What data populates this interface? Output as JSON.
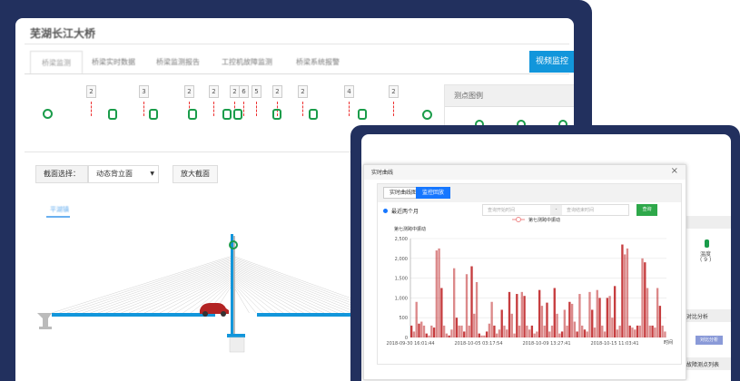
{
  "app": {
    "title": "芜湖长江大桥",
    "tabs": [
      "桥梁监测",
      "桥梁实时数据",
      "桥梁监测报告",
      "工控机故障监测",
      "桥梁系统报警"
    ],
    "video_button": "视频监控"
  },
  "sensors": {
    "counts": [
      "2",
      "3",
      "2",
      "2",
      "2",
      "6",
      "5",
      "2",
      "2",
      "4",
      "2"
    ]
  },
  "legend_panel": {
    "title": "测点图例"
  },
  "section": {
    "label": "截面选择：",
    "selected": "动态背立面",
    "zoom_button": "放大截面",
    "direction": "平湖镇"
  },
  "right_panel": {
    "temp_label": "温度",
    "temp_count": "( 9 )",
    "compare_title": "对比分析",
    "compare_button": "对比分析",
    "list_title": "故障测点列表"
  },
  "modal": {
    "title": "实时曲线",
    "tabs": [
      "实时曲线图",
      "监控回放"
    ],
    "radio": "最近两个月",
    "start_placeholder": "查询开始时间",
    "end_placeholder": "查询结束时间",
    "separator": "-",
    "query_button": "查询"
  },
  "colors": {
    "frame": "#22305e",
    "accent": "#1296db",
    "series": "#c0282a",
    "ok": "#1a9c4a"
  },
  "chart_data": {
    "type": "bar",
    "title": "",
    "legend": [
      "第七测跨中振动"
    ],
    "ylabel": "第七测跨中振动",
    "xlabel": "时间",
    "ylim": [
      0,
      2500
    ],
    "yticks": [
      "0",
      "500",
      "1,000",
      "1,500",
      "2,000",
      "2,500"
    ],
    "xticks": [
      "2018-09-30 16:01:44",
      "2018-10-05 03:17:54",
      "2018-10-09 13:27:41",
      "2018-10-15 11:03:41"
    ],
    "grid": true,
    "series": [
      {
        "name": "第七测跨中振动",
        "values": [
          300,
          150,
          900,
          350,
          400,
          300,
          100,
          50,
          300,
          250,
          2200,
          2250,
          1250,
          300,
          100,
          50,
          200,
          1750,
          500,
          300,
          300,
          150,
          1600,
          300,
          1800,
          600,
          1400,
          100,
          50,
          50,
          150,
          350,
          900,
          300,
          100,
          200,
          700,
          300,
          200,
          1150,
          600,
          100,
          1100,
          300,
          1150,
          1050,
          300,
          200,
          300,
          100,
          150,
          1200,
          800,
          300,
          880,
          150,
          300,
          1250,
          600,
          100,
          150,
          700,
          300,
          900,
          850,
          400,
          150,
          1100,
          300,
          200,
          150,
          1150,
          700,
          250,
          1200,
          1000,
          300,
          150,
          1000,
          1050,
          500,
          1300,
          200,
          300,
          2350,
          2100,
          2250,
          300,
          250,
          200,
          300,
          300,
          2000,
          1900,
          1250,
          300,
          300,
          250,
          1250,
          800,
          300,
          150
        ]
      }
    ]
  }
}
